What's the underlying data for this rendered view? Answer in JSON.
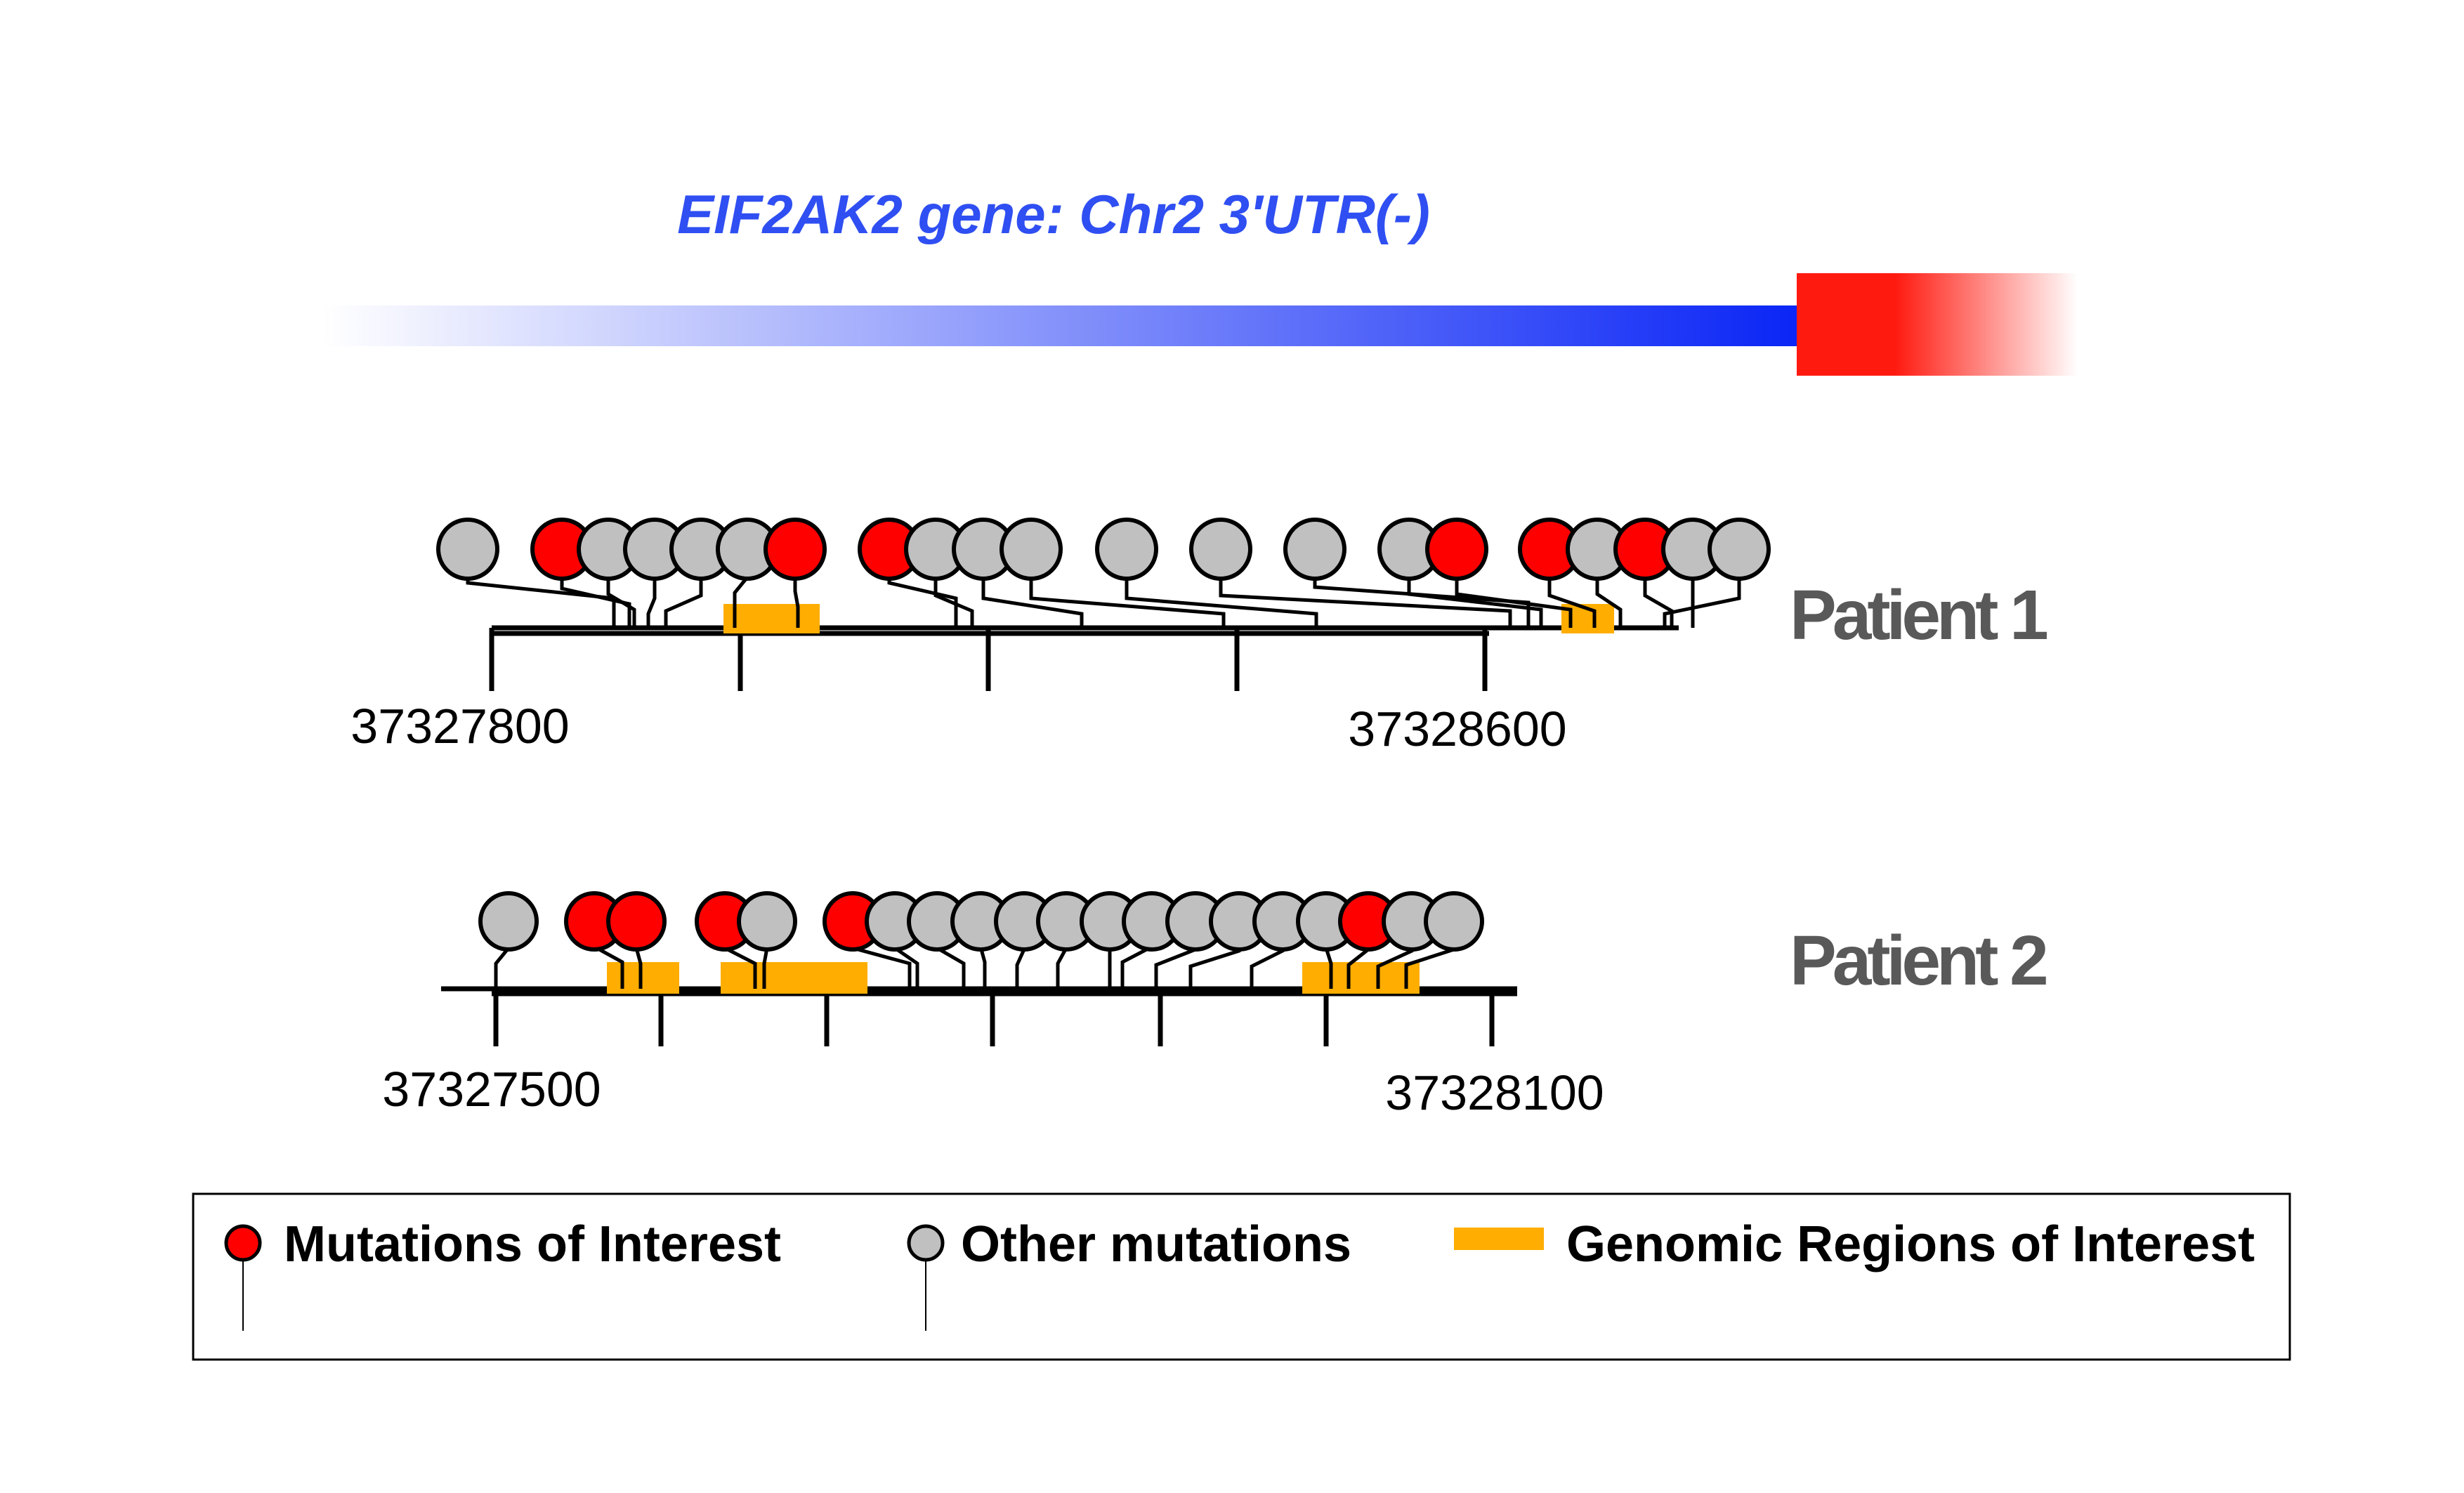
{
  "title": "EIF2AK2 gene: Chr2 3'UTR(-)",
  "colors": {
    "title": "#2f4ff2",
    "gene_blue": "#0a25f6",
    "gene_red": "#ff1a10",
    "interest": "#ff0000",
    "other": "#c0c0c0",
    "region": "#ffad00",
    "patient_label": "#595959"
  },
  "tracks": [
    {
      "label": "Patient 1",
      "coord_start": 37327800,
      "coord_end": 37328600,
      "coord_labels": [
        "37327800",
        "37328600"
      ],
      "lollipops": [
        {
          "type": "other"
        },
        {
          "type": "interest"
        },
        {
          "type": "other"
        },
        {
          "type": "other"
        },
        {
          "type": "other"
        },
        {
          "type": "other"
        },
        {
          "type": "interest"
        },
        {
          "type": "interest"
        },
        {
          "type": "other"
        },
        {
          "type": "other"
        },
        {
          "type": "other"
        },
        {
          "type": "other"
        },
        {
          "type": "other"
        },
        {
          "type": "other"
        },
        {
          "type": "other"
        },
        {
          "type": "interest"
        },
        {
          "type": "interest"
        },
        {
          "type": "other"
        },
        {
          "type": "interest"
        },
        {
          "type": "other"
        },
        {
          "type": "other"
        }
      ]
    },
    {
      "label": "Patient 2",
      "coord_start": 37327500,
      "coord_end": 37328100,
      "coord_labels": [
        "37327500",
        "37328100"
      ],
      "lollipops": [
        {
          "type": "other"
        },
        {
          "type": "interest"
        },
        {
          "type": "interest"
        },
        {
          "type": "interest"
        },
        {
          "type": "other"
        },
        {
          "type": "interest"
        },
        {
          "type": "other"
        },
        {
          "type": "other"
        },
        {
          "type": "other"
        },
        {
          "type": "other"
        },
        {
          "type": "other"
        },
        {
          "type": "other"
        },
        {
          "type": "other"
        },
        {
          "type": "other"
        },
        {
          "type": "other"
        },
        {
          "type": "other"
        },
        {
          "type": "other"
        },
        {
          "type": "interest"
        },
        {
          "type": "other"
        },
        {
          "type": "other"
        }
      ]
    }
  ],
  "legend": {
    "interest_label": "Mutations of Interest",
    "other_label": "Other mutations",
    "region_label": "Genomic Regions of Interest"
  }
}
